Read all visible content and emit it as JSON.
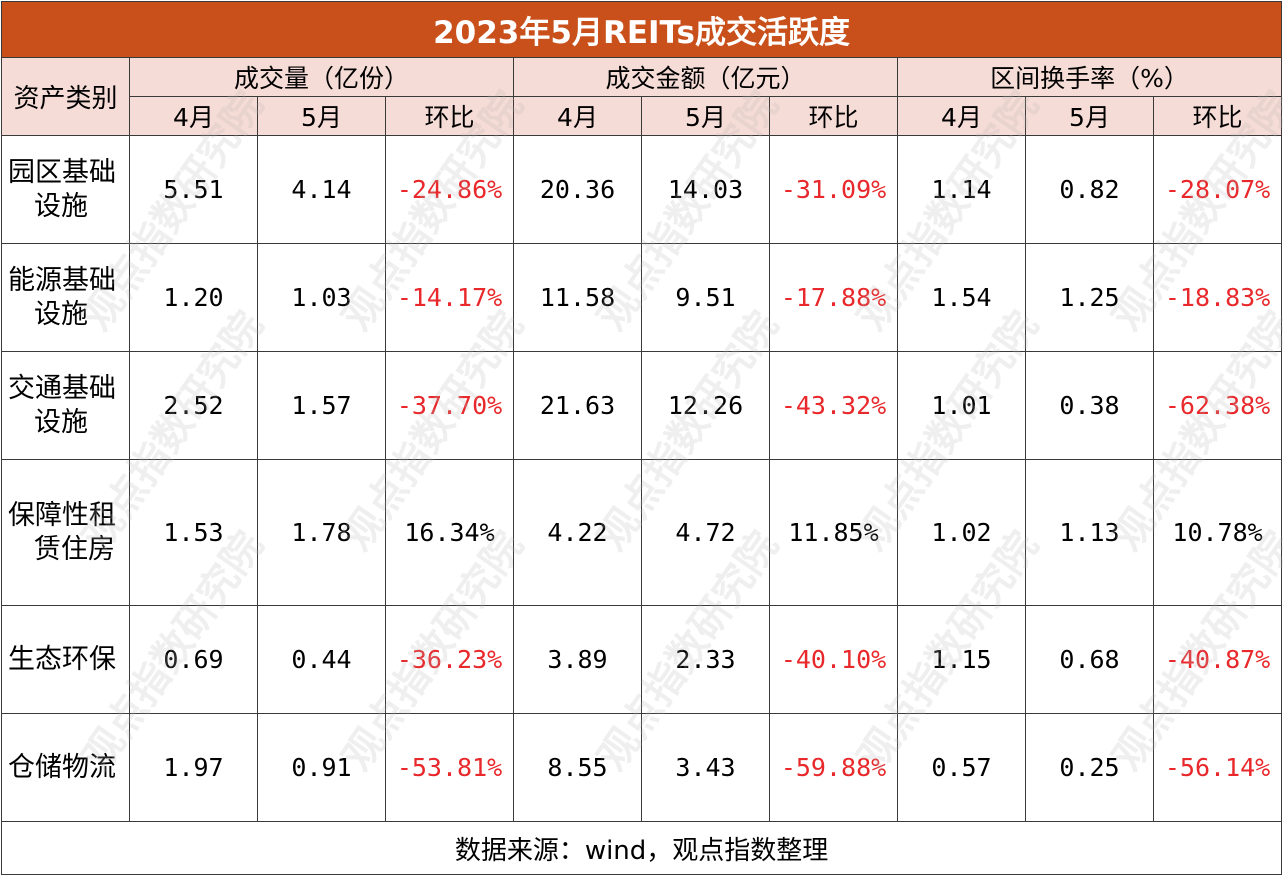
{
  "title": "2023年5月REITs成交活跃度",
  "header": {
    "category_label": "资产类别",
    "groups": [
      "成交量（亿份）",
      "成交金额（亿元）",
      "区间换手率（%）"
    ],
    "sub": [
      "4月",
      "5月",
      "环比"
    ]
  },
  "rows": [
    {
      "label": "园区基础设施",
      "line1": "园区基础",
      "line2": "设施",
      "vals": [
        "5.51",
        "4.14",
        "-24.86%",
        "20.36",
        "14.03",
        "-31.09%",
        "1.14",
        "0.82",
        "-28.07%"
      ]
    },
    {
      "label": "能源基础设施",
      "line1": "能源基础",
      "line2": "设施",
      "vals": [
        "1.20",
        "1.03",
        "-14.17%",
        "11.58",
        "9.51",
        "-17.88%",
        "1.54",
        "1.25",
        "-18.83%"
      ]
    },
    {
      "label": "交通基础设施",
      "line1": "交通基础",
      "line2": "设施",
      "vals": [
        "2.52",
        "1.57",
        "-37.70%",
        "21.63",
        "12.26",
        "-43.32%",
        "1.01",
        "0.38",
        "-62.38%"
      ]
    },
    {
      "label": "保障性租赁住房",
      "line1": "保障性租",
      "line2": "赁住房",
      "vals": [
        "1.53",
        "1.78",
        "16.34%",
        "4.22",
        "4.72",
        "11.85%",
        "1.02",
        "1.13",
        "10.78%"
      ]
    },
    {
      "label": "生态环保",
      "line1": "生态环保",
      "line2": "",
      "vals": [
        "0.69",
        "0.44",
        "-36.23%",
        "3.89",
        "2.33",
        "-40.10%",
        "1.15",
        "0.68",
        "-40.87%"
      ]
    },
    {
      "label": "仓储物流",
      "line1": "仓储物流",
      "line2": "",
      "vals": [
        "1.97",
        "0.91",
        "-53.81%",
        "8.55",
        "3.43",
        "-59.88%",
        "0.57",
        "0.25",
        "-56.14%"
      ]
    }
  ],
  "footer": "数据来源：wind，观点指数整理",
  "watermark": "观点指数研究院",
  "colors": {
    "title_bg": "#c9501b",
    "header_bg": "#f6dcd6",
    "negative": "#e8282b"
  }
}
